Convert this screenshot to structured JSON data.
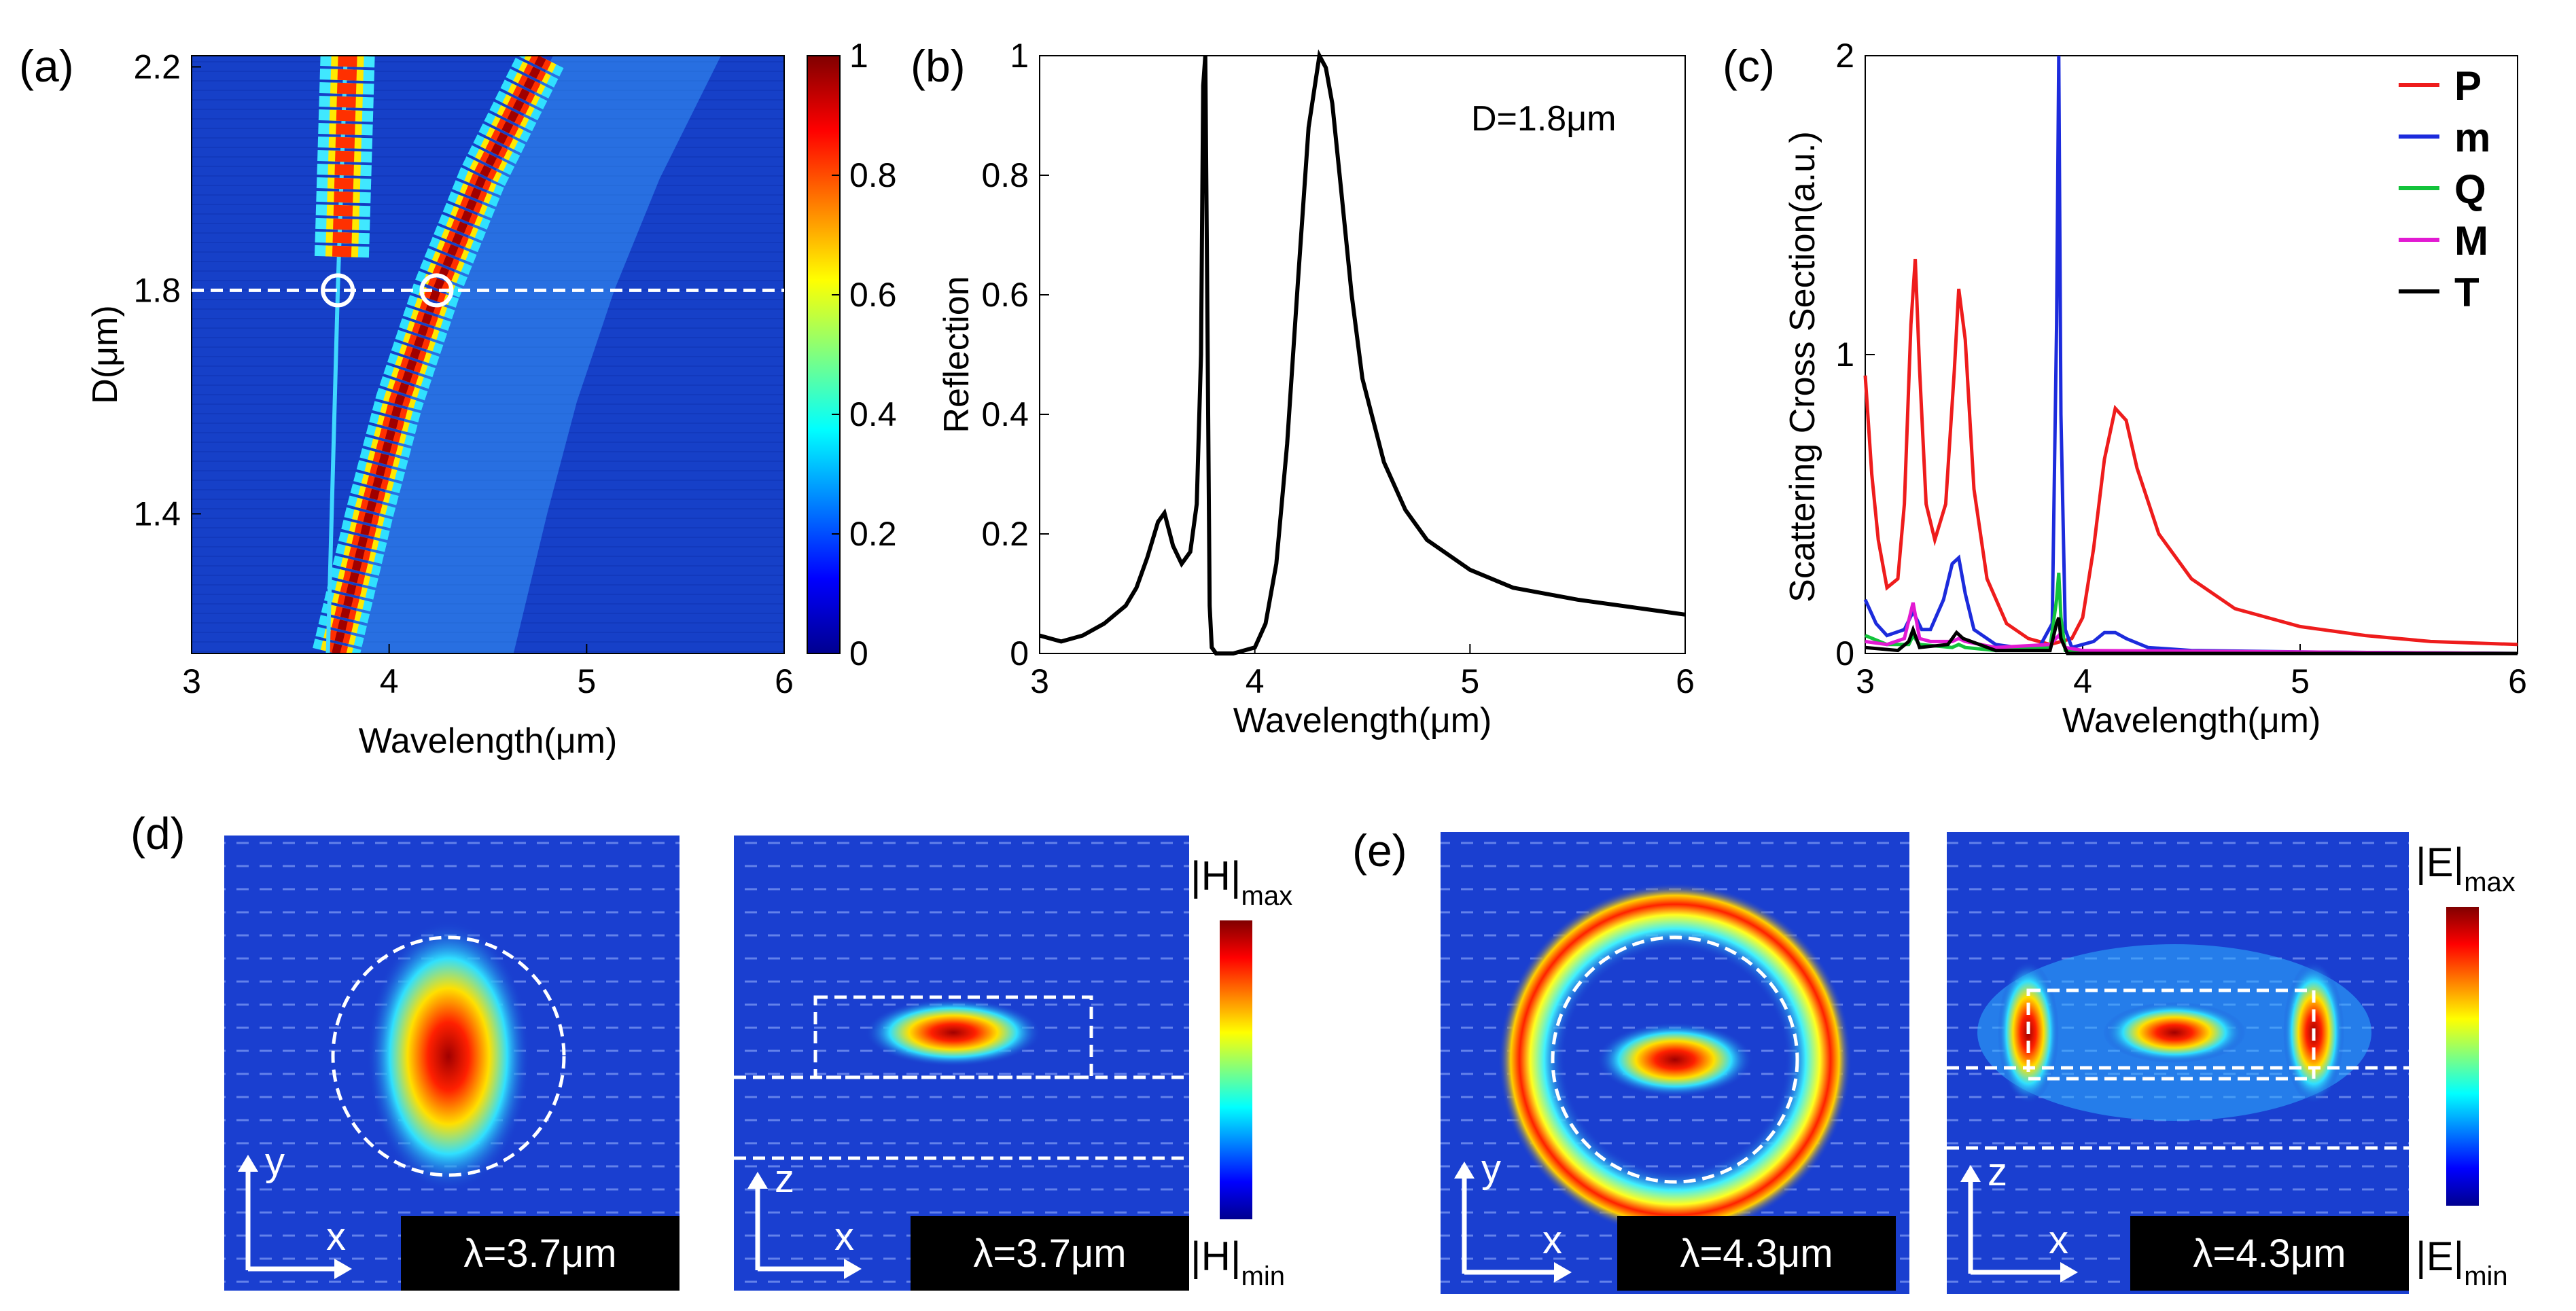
{
  "colors": {
    "jet_dark_blue": "#00008f",
    "jet_blue": "#1640c8",
    "jet_cyan": "#00e0ff",
    "jet_yellow": "#ffff00",
    "jet_red": "#e00000",
    "jet_dark_red": "#800000",
    "P": "#ee1c1c",
    "m": "#1c2bdc",
    "Q": "#12c33a",
    "M": "#e21ad2",
    "T": "#000000"
  },
  "chart_data": [
    {
      "id": "a",
      "label": "(a)",
      "type": "heatmap",
      "xlabel": "Wavelength(μm)",
      "ylabel": "D(μm)",
      "xlim": [
        3,
        6
      ],
      "ylim": [
        1.15,
        2.22
      ],
      "xticks": [
        "3",
        "4",
        "5",
        "6"
      ],
      "yticks": [
        "1.4",
        "1.8",
        "2.2"
      ],
      "ytick_values": [
        1.4,
        1.8,
        2.2
      ],
      "colorbar": {
        "range": [
          0,
          1
        ],
        "ticks": [
          "0",
          "0.2",
          "0.4",
          "0.6",
          "0.8",
          "1"
        ]
      },
      "dashed_line_D": 1.8,
      "circled_points": [
        {
          "x": 3.74,
          "y": 1.8
        },
        {
          "x": 4.24,
          "y": 1.8
        }
      ],
      "ridge_main": [
        {
          "D": 1.15,
          "wl": 3.73
        },
        {
          "D": 1.4,
          "wl": 3.9
        },
        {
          "D": 1.6,
          "wl": 4.05
        },
        {
          "D": 1.8,
          "wl": 4.24
        },
        {
          "D": 2.0,
          "wl": 4.47
        },
        {
          "D": 2.22,
          "wl": 4.78
        }
      ],
      "ridge_narrow": [
        {
          "D": 1.15,
          "wl": 3.69
        },
        {
          "D": 1.8,
          "wl": 3.74
        },
        {
          "D": 2.22,
          "wl": 3.78
        }
      ]
    },
    {
      "id": "b",
      "label": "(b)",
      "type": "line",
      "xlabel": "Wavelength(μm)",
      "ylabel": "Reflection",
      "xlim": [
        3,
        6
      ],
      "ylim": [
        0,
        1
      ],
      "xticks": [
        "3",
        "4",
        "5",
        "6"
      ],
      "yticks": [
        "0",
        "0.2",
        "0.4",
        "0.6",
        "0.8",
        "1"
      ],
      "annotation": "D=1.8μm",
      "series": [
        {
          "name": "Reflection",
          "x": [
            3.0,
            3.1,
            3.2,
            3.3,
            3.4,
            3.45,
            3.5,
            3.55,
            3.58,
            3.62,
            3.66,
            3.7,
            3.73,
            3.75,
            3.76,
            3.77,
            3.78,
            3.79,
            3.8,
            3.82,
            3.9,
            4.0,
            4.05,
            4.1,
            4.15,
            4.2,
            4.25,
            4.3,
            4.33,
            4.36,
            4.4,
            4.45,
            4.5,
            4.6,
            4.7,
            4.8,
            5.0,
            5.2,
            5.5,
            5.8,
            6.0
          ],
          "y": [
            0.03,
            0.02,
            0.03,
            0.05,
            0.08,
            0.11,
            0.16,
            0.22,
            0.235,
            0.18,
            0.15,
            0.17,
            0.25,
            0.5,
            0.95,
            1.0,
            0.55,
            0.08,
            0.01,
            0.0,
            0.0,
            0.01,
            0.05,
            0.15,
            0.35,
            0.62,
            0.88,
            1.0,
            0.98,
            0.92,
            0.78,
            0.6,
            0.46,
            0.32,
            0.24,
            0.19,
            0.14,
            0.11,
            0.09,
            0.075,
            0.065
          ]
        }
      ]
    },
    {
      "id": "c",
      "label": "(c)",
      "type": "line",
      "xlabel": "Wavelength(μm)",
      "ylabel": "Scattering Cross Section(a.u.)",
      "xlim": [
        3,
        6
      ],
      "ylim": [
        0,
        2
      ],
      "xticks": [
        "3",
        "4",
        "5",
        "6"
      ],
      "yticks": [
        "0",
        "1",
        "2"
      ],
      "legend_position": "top-right",
      "series": [
        {
          "name": "P",
          "x": [
            3.0,
            3.03,
            3.06,
            3.1,
            3.15,
            3.18,
            3.21,
            3.23,
            3.25,
            3.28,
            3.32,
            3.37,
            3.41,
            3.43,
            3.46,
            3.5,
            3.56,
            3.65,
            3.75,
            3.85,
            3.95,
            4.0,
            4.05,
            4.1,
            4.15,
            4.2,
            4.25,
            4.35,
            4.5,
            4.7,
            5.0,
            5.3,
            5.6,
            6.0
          ],
          "y": [
            0.93,
            0.6,
            0.38,
            0.22,
            0.25,
            0.5,
            1.1,
            1.32,
            0.95,
            0.5,
            0.38,
            0.5,
            0.95,
            1.22,
            1.05,
            0.55,
            0.25,
            0.1,
            0.05,
            0.03,
            0.05,
            0.12,
            0.35,
            0.65,
            0.82,
            0.78,
            0.62,
            0.4,
            0.25,
            0.15,
            0.09,
            0.06,
            0.04,
            0.03
          ]
        },
        {
          "name": "m",
          "x": [
            3.0,
            3.05,
            3.1,
            3.18,
            3.22,
            3.26,
            3.3,
            3.36,
            3.4,
            3.43,
            3.46,
            3.5,
            3.6,
            3.7,
            3.8,
            3.86,
            3.88,
            3.89,
            3.9,
            3.92,
            3.95,
            4.05,
            4.1,
            4.15,
            4.2,
            4.3,
            4.5,
            5.0,
            6.0
          ],
          "y": [
            0.18,
            0.1,
            0.06,
            0.08,
            0.14,
            0.08,
            0.08,
            0.18,
            0.3,
            0.32,
            0.2,
            0.08,
            0.03,
            0.02,
            0.02,
            0.1,
            1.1,
            2.0,
            0.8,
            0.08,
            0.02,
            0.04,
            0.07,
            0.07,
            0.05,
            0.02,
            0.01,
            0.005,
            0.0
          ]
        },
        {
          "name": "Q",
          "x": [
            3.0,
            3.1,
            3.2,
            3.22,
            3.25,
            3.4,
            3.43,
            3.46,
            3.6,
            3.85,
            3.88,
            3.89,
            3.9,
            3.92,
            4.0,
            6.0
          ],
          "y": [
            0.06,
            0.03,
            0.03,
            0.06,
            0.03,
            0.02,
            0.03,
            0.02,
            0.01,
            0.02,
            0.18,
            0.27,
            0.12,
            0.01,
            0.0,
            0.0
          ]
        },
        {
          "name": "M",
          "x": [
            3.0,
            3.1,
            3.18,
            3.22,
            3.25,
            3.3,
            3.4,
            3.43,
            3.46,
            3.6,
            3.85,
            3.89,
            3.92,
            4.0,
            6.0
          ],
          "y": [
            0.04,
            0.03,
            0.05,
            0.17,
            0.05,
            0.04,
            0.04,
            0.05,
            0.04,
            0.02,
            0.03,
            0.06,
            0.02,
            0.01,
            0.0
          ]
        },
        {
          "name": "T",
          "x": [
            3.0,
            3.15,
            3.2,
            3.22,
            3.25,
            3.38,
            3.42,
            3.45,
            3.6,
            3.85,
            3.88,
            3.89,
            3.9,
            3.93,
            4.0,
            6.0
          ],
          "y": [
            0.02,
            0.01,
            0.04,
            0.08,
            0.02,
            0.03,
            0.07,
            0.05,
            0.01,
            0.01,
            0.1,
            0.12,
            0.05,
            0.0,
            0.0,
            0.0
          ]
        }
      ]
    }
  ],
  "field_maps": {
    "d": {
      "label": "(d)",
      "colorbar_top": "|H|",
      "colorbar_top_sub": "max",
      "colorbar_bottom": "|H|",
      "colorbar_bottom_sub": "min",
      "maps": [
        {
          "axis_vertical": "y",
          "axis_horizontal": "x",
          "wavelength_label": "λ=3.7μm"
        },
        {
          "axis_vertical": "z",
          "axis_horizontal": "x",
          "wavelength_label": "λ=3.7μm"
        }
      ]
    },
    "e": {
      "label": "(e)",
      "colorbar_top": "|E|",
      "colorbar_top_sub": "max",
      "colorbar_bottom": "|E|",
      "colorbar_bottom_sub": "min",
      "maps": [
        {
          "axis_vertical": "y",
          "axis_horizontal": "x",
          "wavelength_label": "λ=4.3μm"
        },
        {
          "axis_vertical": "z",
          "axis_horizontal": "x",
          "wavelength_label": "λ=4.3μm"
        }
      ]
    }
  }
}
